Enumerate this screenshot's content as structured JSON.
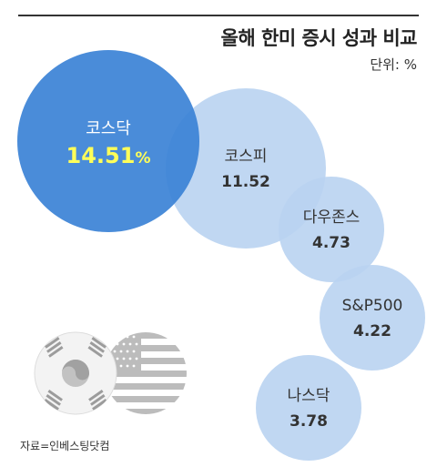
{
  "header": {
    "title": "올해 한미 증시 성과 비교",
    "unit": "단위: %"
  },
  "footer": {
    "source": "자료=인베스팅닷컴"
  },
  "flags": [
    "korea-flag-icon",
    "usa-flag-icon"
  ],
  "colors": {
    "highlight": "#3b82d6",
    "bubble": "#b9d3f1",
    "highlight_value": "#ffff59"
  },
  "chart_data": {
    "type": "bubble",
    "title": "올해 한미 증시 성과 비교",
    "unit": "단위: %",
    "series": [
      {
        "name": "코스닥",
        "value": 14.51,
        "display": "14.51",
        "suffix": "%",
        "highlight": true
      },
      {
        "name": "코스피",
        "value": 11.52,
        "display": "11.52",
        "suffix": "",
        "highlight": false
      },
      {
        "name": "다우존스",
        "value": 4.73,
        "display": "4.73",
        "suffix": "",
        "highlight": false
      },
      {
        "name": "S&P500",
        "value": 4.22,
        "display": "4.22",
        "suffix": "",
        "highlight": false
      },
      {
        "name": "나스닥",
        "value": 3.78,
        "display": "3.78",
        "suffix": "",
        "highlight": false
      }
    ]
  }
}
